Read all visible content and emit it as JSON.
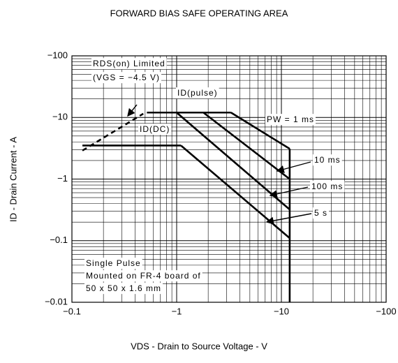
{
  "chart_data": {
    "type": "line",
    "title": "FORWARD BIAS SAFE OPERATING AREA",
    "xlabel": "VDS - Drain to Source Voltage - V",
    "ylabel": "ID - Drain Current - A",
    "xscale": "log",
    "yscale": "log",
    "grid": true,
    "minor_grid": true,
    "xlim": [
      -0.1,
      -100
    ],
    "ylim": [
      -0.01,
      -100
    ],
    "xticks": [
      {
        "value": -0.1,
        "label": "−0.1"
      },
      {
        "value": -1,
        "label": "−1"
      },
      {
        "value": -10,
        "label": "−10"
      },
      {
        "value": -100,
        "label": "−100"
      }
    ],
    "yticks": [
      {
        "value": -0.01,
        "label": "−0.01"
      },
      {
        "value": -0.1,
        "label": "−0.1"
      },
      {
        "value": -1,
        "label": "−1"
      },
      {
        "value": -10,
        "label": "−10"
      },
      {
        "value": -100,
        "label": "−100"
      }
    ],
    "series": [
      {
        "color": "#000000",
        "dashed": true,
        "x": [
          -0.126,
          -0.48
        ],
        "y": [
          -2.9,
          -11.5
        ]
      },
      {
        "color": "#000000",
        "x": [
          -0.52,
          -3.3
        ],
        "y": [
          -12,
          -12
        ]
      },
      {
        "color": "#000000",
        "x": [
          -3.3,
          -12
        ],
        "y": [
          -12,
          -3.1
        ]
      },
      {
        "color": "#000000",
        "x": [
          -1.8,
          -12
        ],
        "y": [
          -12,
          -1.0
        ]
      },
      {
        "color": "#000000",
        "x": [
          -1.0,
          -12
        ],
        "y": [
          -12,
          -0.32
        ]
      },
      {
        "color": "#000000",
        "x": [
          -0.126,
          -1.1
        ],
        "y": [
          -3.5,
          -3.5
        ]
      },
      {
        "color": "#000000",
        "x": [
          -1.1,
          -12
        ],
        "y": [
          -3.5,
          -0.11
        ]
      },
      {
        "color": "#000000",
        "x": [
          -12,
          -12
        ],
        "y": [
          -3.1,
          -0.01
        ]
      }
    ],
    "annotations": [
      "RDS(on) Limited",
      "(VGS = −4.5 V)",
      "ID(pulse)",
      "ID(DC)",
      "PW = 1 ms",
      "10 ms",
      "100 ms",
      "5 s",
      "Single Pulse",
      "Mounted on FR-4 board of",
      "50 x 50 x 1.6 mm"
    ]
  }
}
